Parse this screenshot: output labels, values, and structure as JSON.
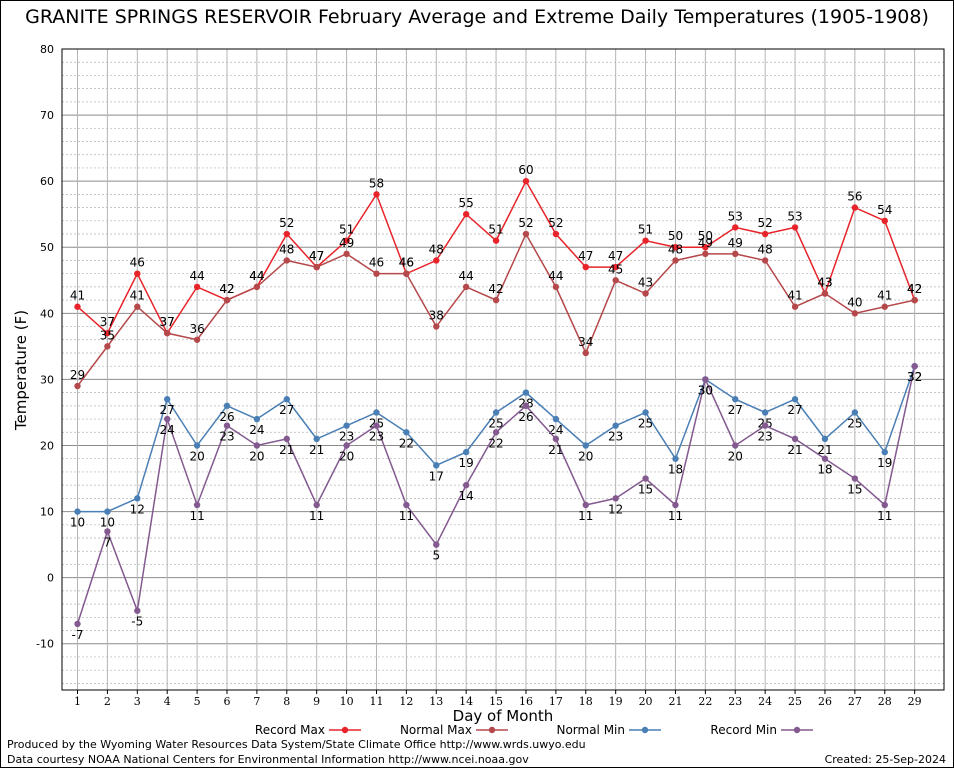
{
  "chart_data": {
    "type": "line",
    "title": "GRANITE SPRINGS RESERVOIR February Average and Extreme Daily Temperatures (1905-1908)",
    "xlabel": "Day of Month",
    "ylabel": "Temperature (F)",
    "ylim": [
      -17,
      80
    ],
    "yticks": [
      -10,
      0,
      10,
      20,
      30,
      40,
      50,
      60,
      70,
      80
    ],
    "categories": [
      "1",
      "2",
      "3",
      "4",
      "5",
      "6",
      "7",
      "8",
      "9",
      "10",
      "11",
      "12",
      "13",
      "14",
      "15",
      "16",
      "17",
      "18",
      "19",
      "20",
      "21",
      "22",
      "23",
      "24",
      "25",
      "26",
      "27",
      "28",
      "29"
    ],
    "grid": true,
    "legend_position": "bottom",
    "series": [
      {
        "name": "Record Max",
        "color": "#e8232a",
        "label_pos": "above",
        "values": [
          41,
          37,
          46,
          37,
          44,
          42,
          44,
          52,
          47,
          51,
          58,
          46,
          48,
          55,
          51,
          60,
          52,
          47,
          47,
          51,
          50,
          50,
          53,
          52,
          53,
          43,
          56,
          54,
          42
        ]
      },
      {
        "name": "Normal Max",
        "color": "#b5484a",
        "label_pos": "above",
        "values": [
          29,
          35,
          41,
          37,
          36,
          42,
          44,
          48,
          47,
          49,
          46,
          46,
          38,
          44,
          42,
          52,
          44,
          34,
          45,
          43,
          48,
          49,
          49,
          48,
          41,
          43,
          40,
          41,
          42
        ]
      },
      {
        "name": "Normal Min",
        "color": "#4a7fb5",
        "label_pos": "below",
        "values": [
          10,
          10,
          12,
          27,
          20,
          26,
          24,
          27,
          21,
          23,
          25,
          22,
          17,
          19,
          25,
          28,
          24,
          20,
          23,
          25,
          18,
          30,
          27,
          25,
          27,
          21,
          25,
          19,
          32
        ]
      },
      {
        "name": "Record Min",
        "color": "#83598f",
        "label_pos": "below",
        "values": [
          -7,
          7,
          -5,
          24,
          11,
          23,
          20,
          21,
          11,
          20,
          23,
          11,
          5,
          14,
          22,
          26,
          21,
          11,
          12,
          15,
          11,
          30,
          20,
          23,
          21,
          18,
          15,
          11,
          32
        ]
      }
    ]
  },
  "footer": {
    "produced_by": "Produced by the Wyoming Water Resources Data System/State Climate Office http://www.wrds.uwyo.edu",
    "courtesy": "Data courtesy NOAA National Centers for Environmental Information http://www.ncei.noaa.gov",
    "created": "Created: 25-Sep-2024"
  }
}
